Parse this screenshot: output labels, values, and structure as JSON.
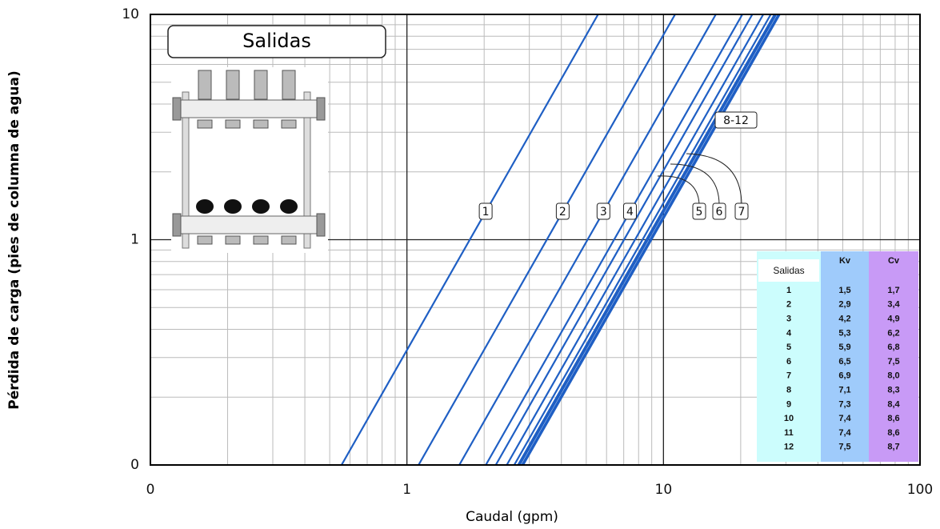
{
  "chart_data": {
    "type": "line",
    "inset_title": "Salidas",
    "x_label": "Caudal (gpm)",
    "y_label": "Pérdida de carga (pies de columna de agua)",
    "log_x": true,
    "log_y": true,
    "xlim": [
      0.1,
      100
    ],
    "ylim": [
      0.1,
      10
    ],
    "xticks": [
      {
        "value": 0.1,
        "label": "0"
      },
      1,
      10,
      100
    ],
    "yticks": [
      {
        "value": 0.1,
        "label": "0"
      },
      1,
      10
    ],
    "x_minor_ticks": [
      0.2,
      0.3,
      0.4,
      0.5,
      0.6,
      0.7,
      0.8,
      0.9,
      2,
      3,
      4,
      5,
      6,
      7,
      8,
      9,
      20,
      30,
      40,
      50,
      60,
      70,
      80,
      90
    ],
    "y_minor_ticks": [
      0.2,
      0.3,
      0.4,
      0.5,
      0.6,
      0.7,
      0.8,
      0.9,
      2,
      3,
      4,
      5,
      6,
      7,
      8,
      9
    ],
    "grid": true,
    "color": "#1f5fc4",
    "series": [
      {
        "name": "1",
        "x": [
          0.556,
          5.56
        ],
        "values": [
          0.1,
          10
        ]
      },
      {
        "name": "2",
        "x": [
          1.11,
          11.1
        ],
        "values": [
          0.1,
          10
        ]
      },
      {
        "name": "3",
        "x": [
          1.6,
          16.0
        ],
        "values": [
          0.1,
          10
        ]
      },
      {
        "name": "4",
        "x": [
          2.03,
          20.3
        ],
        "values": [
          0.1,
          10
        ]
      },
      {
        "name": "5",
        "x": [
          2.22,
          22.2
        ],
        "values": [
          0.1,
          10
        ]
      },
      {
        "name": "6",
        "x": [
          2.45,
          24.5
        ],
        "values": [
          0.1,
          10
        ]
      },
      {
        "name": "7",
        "x": [
          2.62,
          26.2
        ],
        "values": [
          0.1,
          10
        ]
      },
      {
        "x": [
          2.71,
          27.1
        ],
        "values": [
          0.1,
          10
        ]
      },
      {
        "x": [
          2.75,
          27.5
        ],
        "values": [
          0.1,
          10
        ]
      },
      {
        "x": [
          2.81,
          28.1
        ],
        "values": [
          0.1,
          10
        ]
      },
      {
        "x": [
          2.81,
          28.1
        ],
        "values": [
          0.1,
          10
        ]
      },
      {
        "x": [
          2.84,
          28.4
        ],
        "values": [
          0.1,
          10
        ]
      }
    ],
    "annotations": [
      "8-12"
    ],
    "table": {
      "header": [
        "Salidas",
        "Kv",
        "Cv"
      ],
      "rows": [
        [
          "1",
          "1,5",
          "1,7"
        ],
        [
          "2",
          "2,9",
          "3,4"
        ],
        [
          "3",
          "4,2",
          "4,9"
        ],
        [
          "4",
          "5,3",
          "6,2"
        ],
        [
          "5",
          "5,9",
          "6,8"
        ],
        [
          "6",
          "6,5",
          "7,5"
        ],
        [
          "7",
          "6,9",
          "8,0"
        ],
        [
          "8",
          "7,1",
          "8,3"
        ],
        [
          "9",
          "7,3",
          "8,4"
        ],
        [
          "10",
          "7,4",
          "8,6"
        ],
        [
          "11",
          "7,4",
          "8,6"
        ],
        [
          "12",
          "7,5",
          "8,7"
        ]
      ]
    }
  }
}
